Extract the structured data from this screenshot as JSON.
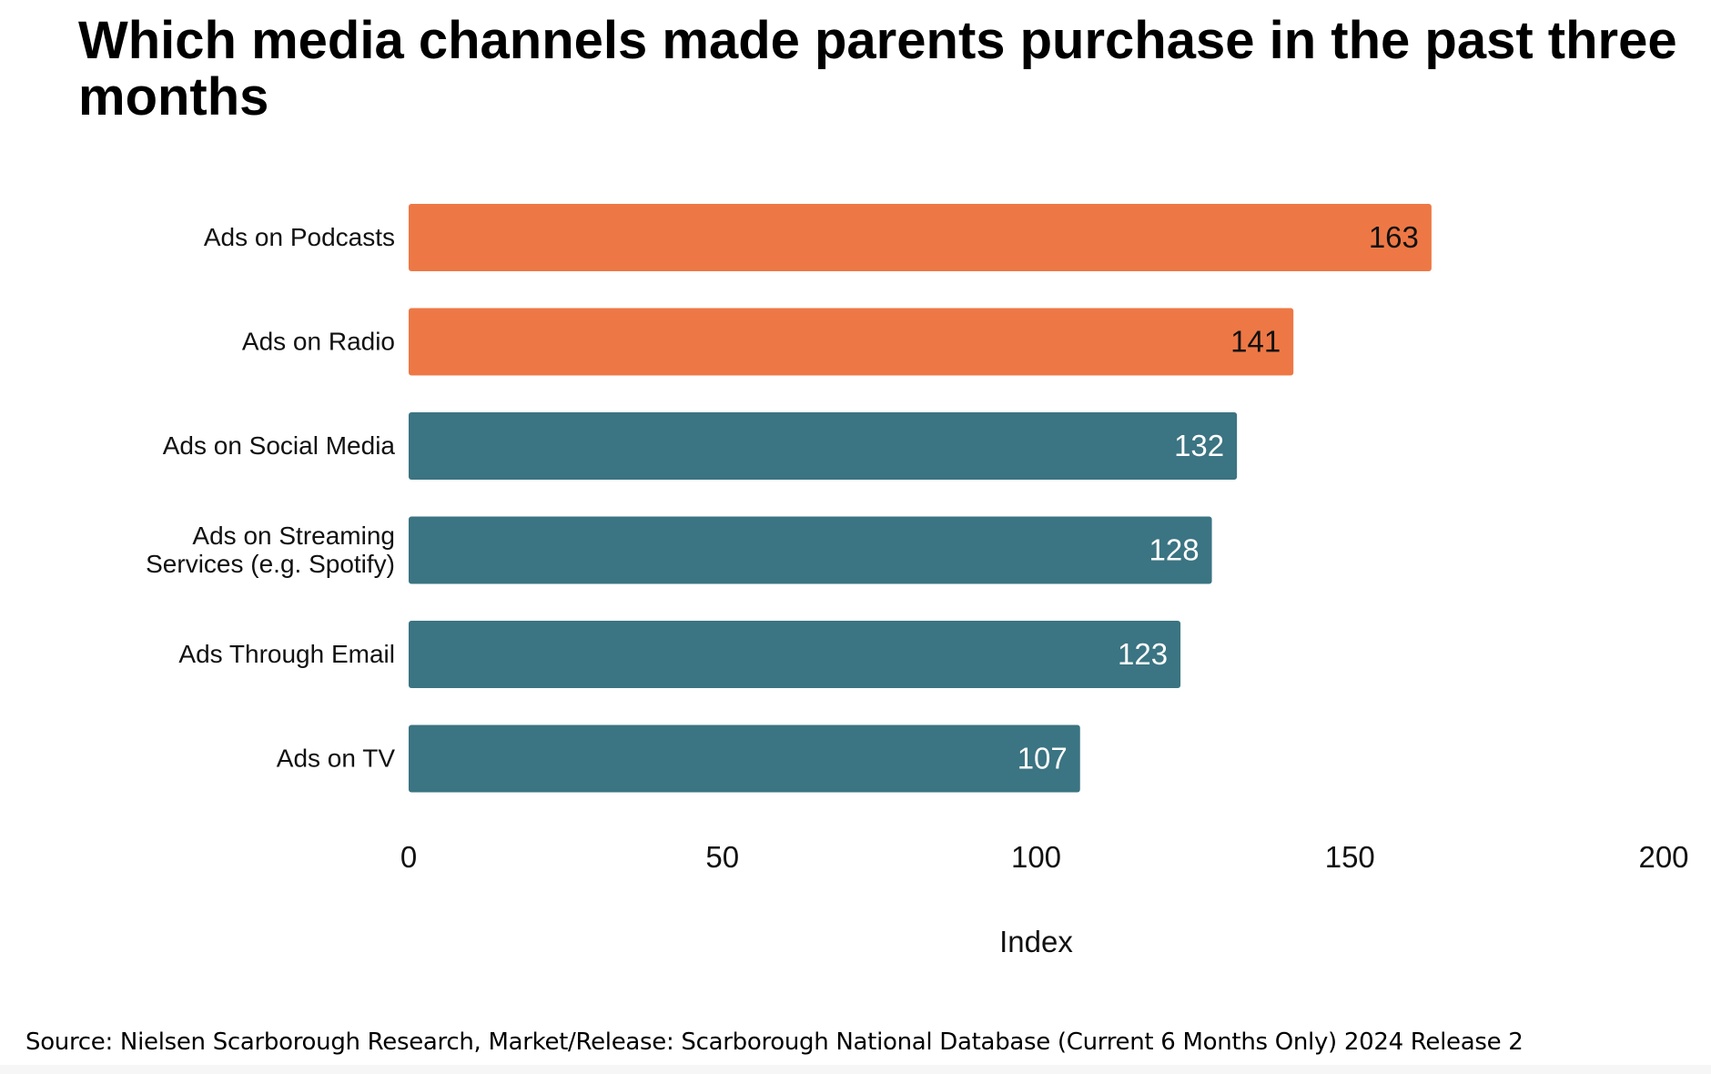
{
  "chart_data": {
    "type": "bar",
    "orientation": "horizontal",
    "title": "Which media channels made parents purchase in the past three months",
    "categories": [
      "Ads on Podcasts",
      "Ads on Radio",
      "Ads on Social Media",
      "Ads on Streaming Services (e.g. Spotify)",
      "Ads Through Email",
      "Ads on TV"
    ],
    "category_lines": [
      [
        "Ads on Podcasts"
      ],
      [
        "Ads on Radio"
      ],
      [
        "Ads on Social Media"
      ],
      [
        "Ads on Streaming",
        "Services (e.g. Spotify)"
      ],
      [
        "Ads Through Email"
      ],
      [
        "Ads on TV"
      ]
    ],
    "values": [
      163,
      141,
      132,
      128,
      123,
      107
    ],
    "value_labels": [
      "163",
      "141",
      "132",
      "128",
      "123",
      "107"
    ],
    "bar_colors": [
      "#ED7845",
      "#ED7845",
      "#3B7482",
      "#3B7482",
      "#3B7482",
      "#3B7482"
    ],
    "label_colors": [
      "#111111",
      "#111111",
      "#ffffff",
      "#ffffff",
      "#ffffff",
      "#ffffff"
    ],
    "xlabel": "Index",
    "ylabel": "",
    "xlim": [
      0,
      200
    ],
    "xticks": [
      "0",
      "50",
      "100",
      "150",
      "200"
    ],
    "grid": false,
    "legend": "none"
  },
  "source": "Source: Nielsen Scarborough Research, Market/Release: Scarborough National Database (Current 6 Months Only) 2024 Release 2"
}
